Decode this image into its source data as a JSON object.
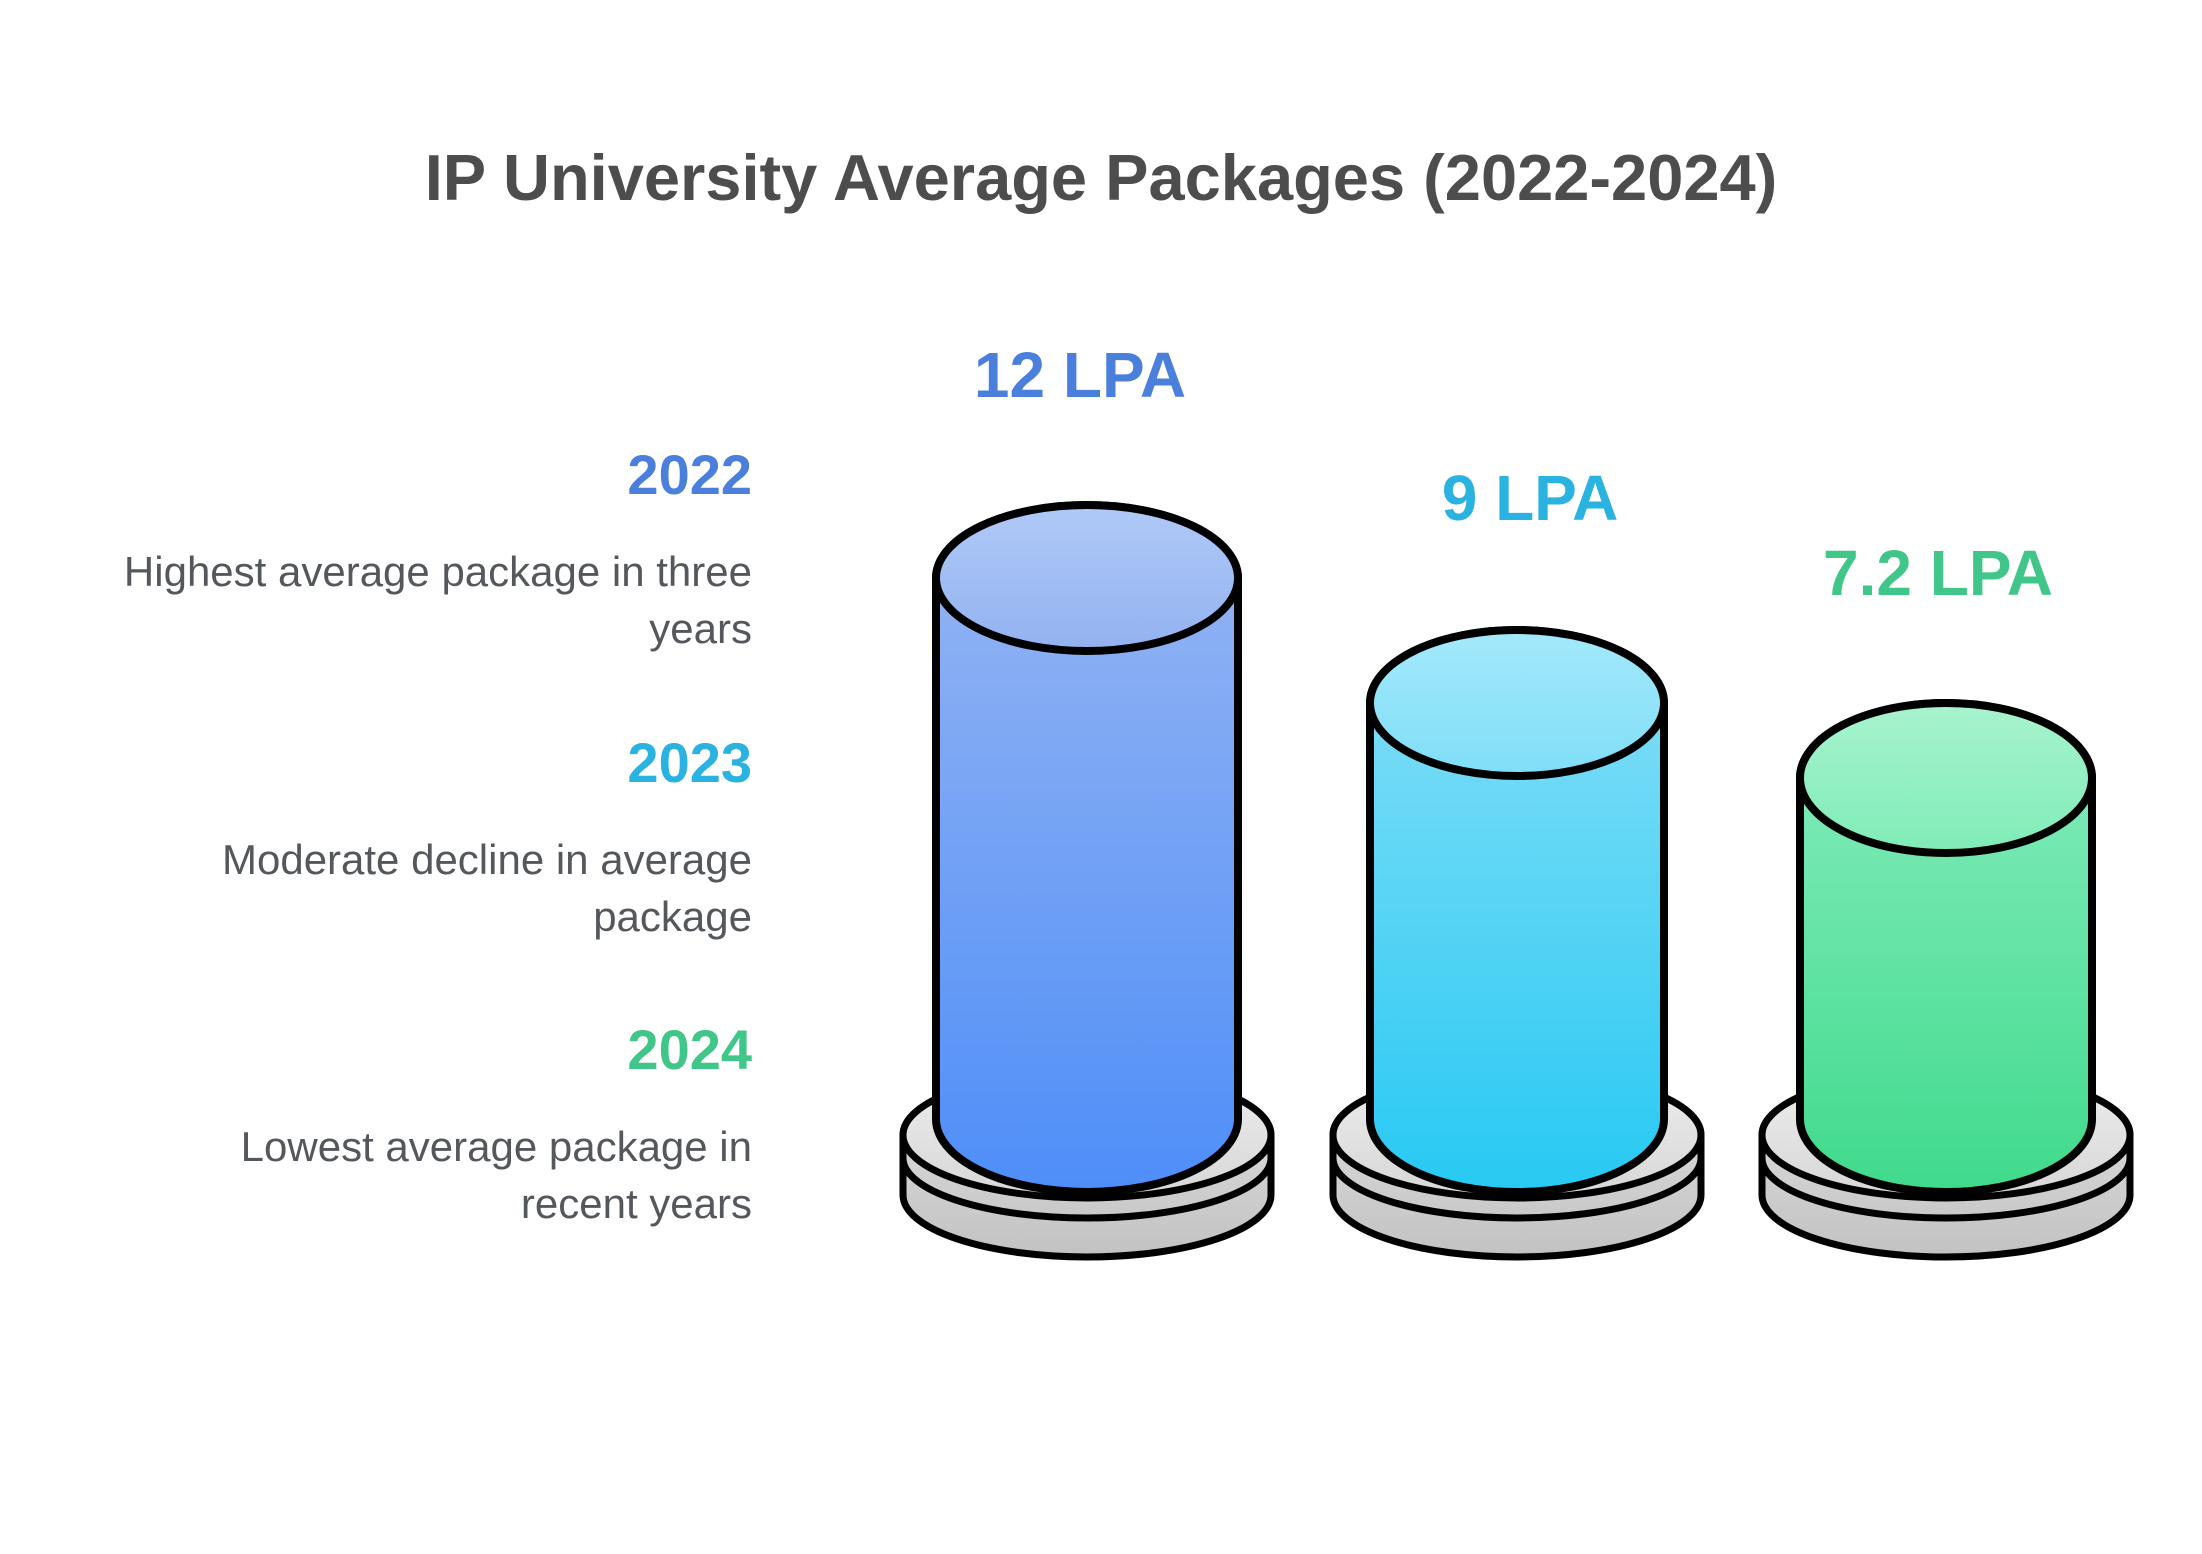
{
  "title": "IP University Average Packages (2022-2024)",
  "palette": {
    "title_text": "#4d4d4d",
    "description_text": "#54585c",
    "outline": "#000000",
    "pedestal_side_top": "#e2e2e2",
    "pedestal_side_bottom": "#c2c2c2",
    "pedestal_face_top": "#ededed",
    "pedestal_face_bottom": "#d7d7d7"
  },
  "chart_data": {
    "type": "bar",
    "title": "IP University Average Packages (2022-2024)",
    "unit": "LPA",
    "categories": [
      "2022",
      "2023",
      "2024"
    ],
    "values": [
      12,
      9,
      7.2
    ],
    "legend_position": "left",
    "grid": false,
    "bars": [
      {
        "year": "2022",
        "value": 12,
        "value_label": "12 LPA",
        "description": "Highest average package in three\nyears",
        "accent": "#4a80dc",
        "body_top": "#98b6f2",
        "body_bottom": "#4e8ef8",
        "face_top": "#b0c9f7",
        "face_bottom": "#92b2f0"
      },
      {
        "year": "2023",
        "value": 9,
        "value_label": "9 LPA",
        "description": "Moderate decline in average\npackage",
        "accent": "#2ab2e0",
        "body_top": "#87dff7",
        "body_bottom": "#27c9f3",
        "face_top": "#a4e9fb",
        "face_bottom": "#7fdef7"
      },
      {
        "year": "2024",
        "value": 7.2,
        "value_label": "7.2 LPA",
        "description": "Lowest average package in\nrecent years",
        "accent": "#41c689",
        "body_top": "#88edbf",
        "body_bottom": "#40da8c",
        "face_top": "#a8f3cf",
        "face_bottom": "#7fecb7"
      }
    ]
  }
}
